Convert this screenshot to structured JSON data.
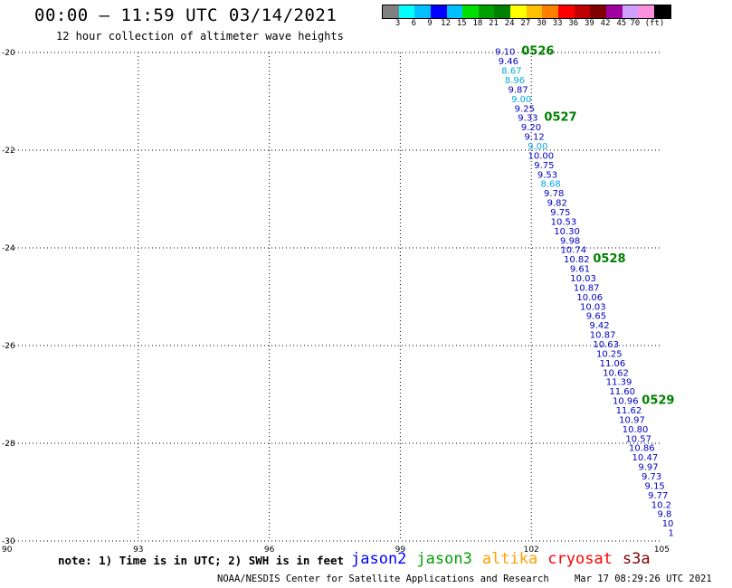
{
  "header": {
    "title": "00:00 – 11:59 UTC 03/14/2021",
    "subtitle": "12 hour collection of altimeter wave heights"
  },
  "colorbar": {
    "colors": [
      "#808080",
      "#00ffff",
      "#00c0ff",
      "#0000ff",
      "#00c0ff",
      "#00e000",
      "#00a000",
      "#008000",
      "#ffff00",
      "#ffc000",
      "#ff8000",
      "#ff0000",
      "#c00000",
      "#800000",
      "#a000a0",
      "#d0a0ff",
      "#ff90e0",
      "#000000"
    ],
    "ticks": [
      "3",
      "6",
      "9",
      "12",
      "15",
      "18",
      "21",
      "24",
      "27",
      "30",
      "33",
      "36",
      "39",
      "42",
      "45",
      "70 (ft)"
    ]
  },
  "chart_data": {
    "type": "map",
    "xlim": [
      90,
      105
    ],
    "ylim": [
      -30,
      -20
    ],
    "x_ticks": [
      90,
      93,
      96,
      99,
      102,
      105
    ],
    "x_tick_labels": [
      "90",
      "93",
      "96",
      "99",
      "102",
      "105"
    ],
    "y_ticks": [
      -20,
      -22,
      -24,
      -26,
      -28,
      -30
    ],
    "y_tick_labels": [
      "-20",
      "-22",
      "-24",
      "-26",
      "-28",
      "-30"
    ],
    "grid": "dotted",
    "track": {
      "satellite": "jason2",
      "start": [
        101.4,
        -20.05
      ],
      "end": [
        105.2,
        -29.9
      ],
      "heights": [
        "9.10",
        "9.46",
        "8.67",
        "8.96",
        "9.87",
        "9.00",
        "9.25",
        "9.33",
        "9.20",
        "9.12",
        "9.00",
        "10.00",
        "9.75",
        "9.53",
        "8.68",
        "9.78",
        "9.82",
        "9.75",
        "10.53",
        "10.30",
        "9.98",
        "10.74",
        "10.82",
        "9.61",
        "10.03",
        "10.87",
        "10.06",
        "10.03",
        "9.65",
        "9.42",
        "10.87",
        "10.63",
        "10.25",
        "11.06",
        "10.62",
        "11.39",
        "11.60",
        "10.96",
        "11.62",
        "10.97",
        "10.80",
        "10.57",
        "10.86",
        "10.47",
        "9.97",
        "9.73",
        "9.15",
        "9.77",
        "10.2",
        "9.8",
        "10",
        "1"
      ],
      "colors": [
        "#0000c0",
        "#0000c0",
        "#00a8e0",
        "#00a8e0",
        "#0000c0",
        "#00a8e0",
        "#0000c0",
        "#0000c0",
        "#0000c0",
        "#0000c0",
        "#00a8e0",
        "#0000c0",
        "#0000c0",
        "#0000c0",
        "#00a8e0",
        "#0000c0",
        "#0000c0",
        "#0000c0",
        "#0000c0",
        "#0000c0",
        "#0000c0",
        "#0000c0",
        "#0000c0",
        "#0000c0",
        "#0000c0",
        "#0000c0",
        "#0000c0",
        "#0000c0",
        "#0000c0",
        "#0000c0",
        "#0000c0",
        "#0000c0",
        "#0000c0",
        "#0000c0",
        "#0000c0",
        "#0000c0",
        "#0000c0",
        "#0000c0",
        "#0000c0",
        "#0000c0",
        "#0000c0",
        "#0000c0",
        "#0000c0",
        "#0000c0",
        "#0000c0",
        "#0000c0",
        "#0000c0",
        "#0000c0",
        "#0000c0",
        "#0000c0",
        "#0000c0",
        "#0000c0"
      ]
    },
    "time_labels": [
      {
        "text": "0526",
        "at_index": 0
      },
      {
        "text": "0527",
        "at_index": 7
      },
      {
        "text": "0528",
        "at_index": 22
      },
      {
        "text": "0529",
        "at_index": 37
      }
    ],
    "time_label_color": "#008000"
  },
  "notes": "note:  1) Time is in UTC;  2) SWH is in feet",
  "satellites": [
    {
      "name": "jason2",
      "color": "#0000ff"
    },
    {
      "name": "jason3",
      "color": "#00a000"
    },
    {
      "name": "altika",
      "color": "#ffa000"
    },
    {
      "name": "cryosat",
      "color": "#ff0000"
    },
    {
      "name": "s3a",
      "color": "#800000"
    }
  ],
  "footer": {
    "credit": "NOAA/NESDIS Center for Satellite Applications and Research",
    "timestamp": "Mar 17 08:29:26 UTC 2021"
  }
}
